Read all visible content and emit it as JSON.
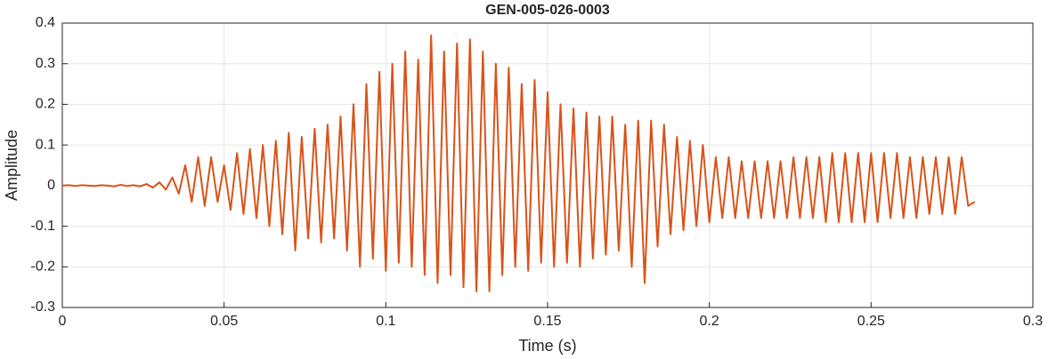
{
  "chart_data": {
    "type": "line",
    "title": "GEN-005-026-0003",
    "x_label": "Time (s)",
    "y_label": "Amplitude",
    "xlim": [
      0,
      0.3
    ],
    "xticks": [
      0,
      0.05,
      0.1,
      0.15,
      0.2,
      0.25,
      0.3
    ],
    "ylim": [
      -0.3,
      0.4
    ],
    "yticks": [
      -0.3,
      -0.2,
      -0.1,
      0,
      0.1,
      0.2,
      0.3,
      0.4
    ],
    "grid": true,
    "series": [
      {
        "color": "#d95319",
        "x": [
          0,
          0.002,
          0.004,
          0.006,
          0.008,
          0.01,
          0.012,
          0.014,
          0.016,
          0.018,
          0.02,
          0.022,
          0.024,
          0.026,
          0.028,
          0.03,
          0.032,
          0.034,
          0.036,
          0.038,
          0.04,
          0.042,
          0.044,
          0.046,
          0.048,
          0.05,
          0.052,
          0.054,
          0.056,
          0.058,
          0.06,
          0.062,
          0.064,
          0.066,
          0.068,
          0.07,
          0.072,
          0.074,
          0.076,
          0.078,
          0.08,
          0.082,
          0.084,
          0.086,
          0.088,
          0.09,
          0.092,
          0.094,
          0.096,
          0.098,
          0.1,
          0.102,
          0.104,
          0.106,
          0.108,
          0.11,
          0.112,
          0.114,
          0.116,
          0.118,
          0.12,
          0.122,
          0.124,
          0.126,
          0.128,
          0.13,
          0.132,
          0.134,
          0.136,
          0.138,
          0.14,
          0.142,
          0.144,
          0.146,
          0.148,
          0.15,
          0.152,
          0.154,
          0.156,
          0.158,
          0.16,
          0.162,
          0.164,
          0.166,
          0.168,
          0.17,
          0.172,
          0.174,
          0.176,
          0.178,
          0.18,
          0.182,
          0.184,
          0.186,
          0.188,
          0.19,
          0.192,
          0.194,
          0.196,
          0.198,
          0.2,
          0.202,
          0.204,
          0.206,
          0.208,
          0.21,
          0.212,
          0.214,
          0.216,
          0.218,
          0.22,
          0.222,
          0.224,
          0.226,
          0.228,
          0.23,
          0.232,
          0.234,
          0.236,
          0.238,
          0.24,
          0.242,
          0.244,
          0.246,
          0.248,
          0.25,
          0.252,
          0.254,
          0.256,
          0.258,
          0.26,
          0.262,
          0.264,
          0.266,
          0.268,
          0.27,
          0.272,
          0.274,
          0.276,
          0.278,
          0.28,
          0.282
        ],
        "values": [
          0,
          0.001,
          -0.001,
          0.001,
          0,
          -0.001,
          0.001,
          0,
          -0.002,
          0.002,
          -0.001,
          0.001,
          -0.002,
          0.004,
          -0.005,
          0.008,
          -0.01,
          0.02,
          -0.02,
          0.05,
          -0.04,
          0.07,
          -0.05,
          0.07,
          -0.04,
          0.05,
          -0.06,
          0.08,
          -0.07,
          0.09,
          -0.08,
          0.1,
          -0.1,
          0.11,
          -0.12,
          0.13,
          -0.16,
          0.12,
          -0.13,
          0.14,
          -0.14,
          0.15,
          -0.13,
          0.17,
          -0.16,
          0.2,
          -0.2,
          0.25,
          -0.18,
          0.28,
          -0.21,
          0.3,
          -0.19,
          0.33,
          -0.2,
          0.31,
          -0.22,
          0.37,
          -0.24,
          0.33,
          -0.22,
          0.35,
          -0.25,
          0.36,
          -0.26,
          0.33,
          -0.26,
          0.3,
          -0.22,
          0.29,
          -0.2,
          0.25,
          -0.21,
          0.26,
          -0.19,
          0.23,
          -0.2,
          0.2,
          -0.19,
          0.19,
          -0.2,
          0.18,
          -0.18,
          0.17,
          -0.17,
          0.17,
          -0.16,
          0.15,
          -0.2,
          0.16,
          -0.24,
          0.16,
          -0.15,
          0.15,
          -0.12,
          0.12,
          -0.11,
          0.11,
          -0.1,
          0.1,
          -0.09,
          0.07,
          -0.08,
          0.07,
          -0.08,
          0.06,
          -0.08,
          0.06,
          -0.08,
          0.06,
          -0.08,
          0.06,
          -0.08,
          0.07,
          -0.08,
          0.07,
          -0.08,
          0.07,
          -0.09,
          0.08,
          -0.09,
          0.08,
          -0.09,
          0.08,
          -0.09,
          0.08,
          -0.09,
          0.08,
          -0.08,
          0.08,
          -0.08,
          0.07,
          -0.08,
          0.07,
          -0.07,
          0.07,
          -0.07,
          0.07,
          -0.07,
          0.07,
          -0.05,
          -0.04
        ]
      }
    ]
  }
}
